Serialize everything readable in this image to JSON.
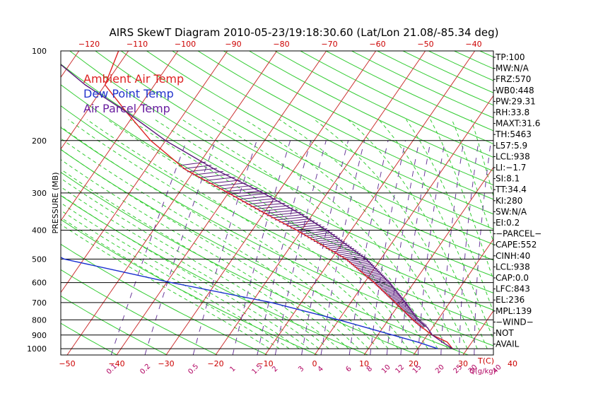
{
  "chart_data": {
    "type": "line",
    "title": "AIRS SkewT Diagram 2010-05-23/19:18:30.60 (Lat/Lon 21.08/-85.34 deg)",
    "ylabel": "PRESSURE (MB)",
    "xlabel": "T(C)",
    "mixing_ratio_unit": "Q(g/kg)",
    "y_scale": "log",
    "ylim": [
      1050,
      100
    ],
    "pressure_ticks": [
      100,
      200,
      300,
      400,
      500,
      600,
      700,
      800,
      900,
      1000
    ],
    "pressure_tick_labels": [
      "100",
      "200",
      "300",
      "400",
      "500",
      "600",
      "700",
      "800",
      "900",
      "1000"
    ],
    "top_temp_ticks": [
      -120,
      -110,
      -100,
      -90,
      -80,
      -70,
      -60,
      -50,
      -40
    ],
    "top_temp_tick_labels": [
      "−120",
      "−110",
      "−100",
      "−90",
      "−80",
      "−70",
      "−60",
      "−50",
      "−40"
    ],
    "bottom_temp_ticks": [
      -50,
      -40,
      -30,
      -20,
      -10,
      0,
      10,
      20,
      30,
      40
    ],
    "bottom_temp_tick_labels": [
      "−50",
      "−40",
      "−30",
      "−20",
      "−10",
      "0",
      "10",
      "20",
      "30",
      "40"
    ],
    "mixing_ratio_values": [
      0.1,
      0.2,
      0.5,
      1,
      1.5,
      2,
      3,
      4,
      6,
      8,
      10,
      12,
      15,
      20,
      25,
      30,
      40
    ],
    "mixing_ratio_labels": [
      "0.1",
      "0.2",
      "0.5",
      "1",
      "1.5",
      "2",
      "3",
      "4",
      "6",
      "8",
      "10",
      "12",
      "15",
      "20",
      "25",
      "30",
      "40"
    ],
    "legend": {
      "placement": "top-left",
      "entries": [
        {
          "label": "Ambient Air Temp",
          "color": "#dd2222"
        },
        {
          "label": "Dew Point Temp",
          "color": "#2233cc"
        },
        {
          "label": "Air Parcel Temp",
          "color": "#6a1fa0"
        }
      ]
    },
    "colors": {
      "ambient": "#dd2222",
      "dewpoint": "#1a2fd0",
      "parcel": "#5a1a7a",
      "isotherm": "#cc3333",
      "dry_adiabat": "#33cc33",
      "moist_adiabat": "#33cc33",
      "mixing_ratio": "#6a3a9a",
      "cape_hatch": "#5a1a7a"
    },
    "series": [
      {
        "name": "Ambient Air Temp",
        "points": [
          {
            "p": 100,
            "t": -82
          },
          {
            "p": 130,
            "t": -80
          },
          {
            "p": 160,
            "t": -72
          },
          {
            "p": 200,
            "t": -63
          },
          {
            "p": 250,
            "t": -52
          },
          {
            "p": 300,
            "t": -40
          },
          {
            "p": 350,
            "t": -30
          },
          {
            "p": 400,
            "t": -21
          },
          {
            "p": 500,
            "t": -7
          },
          {
            "p": 600,
            "t": 2
          },
          {
            "p": 700,
            "t": 9
          },
          {
            "p": 800,
            "t": 15
          },
          {
            "p": 850,
            "t": 18
          },
          {
            "p": 900,
            "t": 21
          },
          {
            "p": 950,
            "t": 25
          },
          {
            "p": 1000,
            "t": 27
          }
        ]
      },
      {
        "name": "Dew Point Temp",
        "points": [
          {
            "p": 100,
            "t": -100
          },
          {
            "p": 130,
            "t": -105
          },
          {
            "p": 160,
            "t": -108
          },
          {
            "p": 200,
            "t": -104
          },
          {
            "p": 245,
            "t": -97
          },
          {
            "p": 250,
            "t": -97
          },
          {
            "p": 300,
            "t": -91
          },
          {
            "p": 400,
            "t": -79
          },
          {
            "p": 500,
            "t": -64
          },
          {
            "p": 600,
            "t": -39
          },
          {
            "p": 700,
            "t": -16
          },
          {
            "p": 800,
            "t": 0
          },
          {
            "p": 900,
            "t": 13
          },
          {
            "p": 950,
            "t": 19
          },
          {
            "p": 1000,
            "t": 24
          }
        ]
      },
      {
        "name": "Air Parcel Temp",
        "points": [
          {
            "p": 100,
            "t": -97
          },
          {
            "p": 130,
            "t": -84
          },
          {
            "p": 160,
            "t": -72
          },
          {
            "p": 200,
            "t": -60
          },
          {
            "p": 250,
            "t": -46
          },
          {
            "p": 300,
            "t": -33
          },
          {
            "p": 350,
            "t": -23
          },
          {
            "p": 400,
            "t": -15
          },
          {
            "p": 500,
            "t": -3
          },
          {
            "p": 600,
            "t": 5
          },
          {
            "p": 700,
            "t": 11
          },
          {
            "p": 800,
            "t": 16
          },
          {
            "p": 850,
            "t": 19
          },
          {
            "p": 900,
            "t": 21
          },
          {
            "p": 950,
            "t": 24
          },
          {
            "p": 1000,
            "t": 27
          }
        ]
      }
    ],
    "cape_hatch_range_mb": [
      240,
      850
    ]
  },
  "stats": [
    "TP:100",
    "MW:N/A",
    "FRZ:570",
    "WB0:448",
    "PW:29.31",
    "RH:33.8",
    "MAXT:31.6",
    "TH:5463",
    "L57:5.9",
    "LCL:938",
    "LI:−1.7",
    "SI:8.1",
    "TT:34.4",
    "KI:280",
    "SW:N/A",
    "EI:0.2",
    "−PARCEL−",
    "CAPE:552",
    "CINH:40",
    "LCL:938",
    "CAP:0.0",
    "LFC:843",
    "EL:236",
    "MPL:139",
    "−WIND−",
    "NOT",
    "AVAIL"
  ]
}
